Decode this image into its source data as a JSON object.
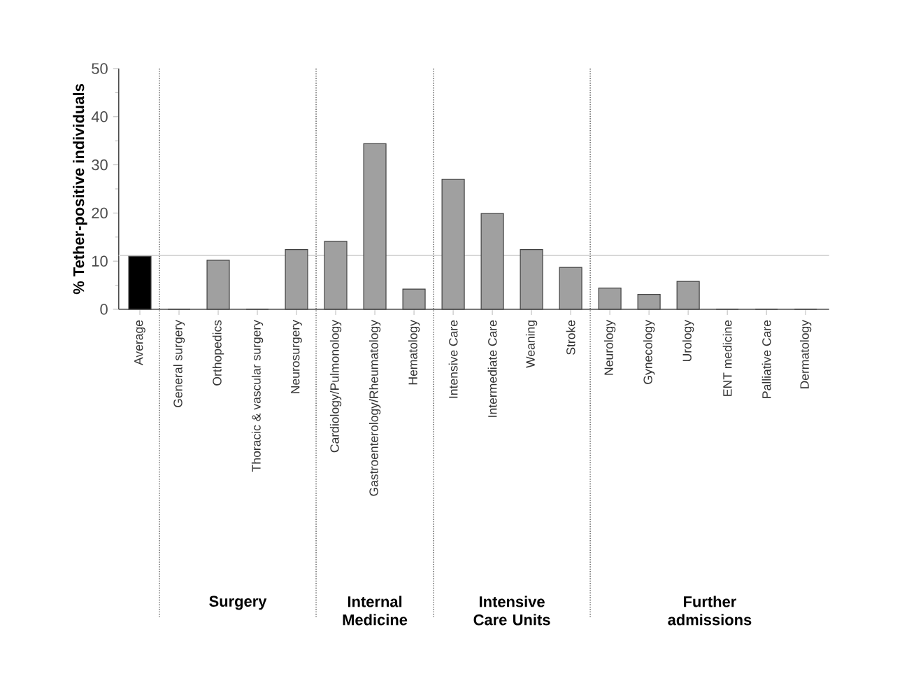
{
  "chart_data": {
    "type": "bar",
    "ylabel": "% Tether-positive individuals",
    "categories": [
      "Average",
      "General surgery",
      "Orthopedics",
      "Thoracic & vascular surgery",
      "Neurosurgery",
      "Cardiology/Pulmonology",
      "Gastroenterology/Rheumatology",
      "Hematology",
      "Intensive Care",
      "Intermediate Care",
      "Weaning",
      "Stroke",
      "Neurology",
      "Gynecology",
      "Urology",
      "ENT medicine",
      "Palliative Care",
      "Dermatology"
    ],
    "values": [
      11.0,
      0,
      10.2,
      0,
      12.4,
      14.1,
      34.4,
      4.2,
      27.0,
      19.9,
      12.4,
      8.7,
      4.4,
      3.1,
      5.8,
      0,
      0,
      0
    ],
    "colors": [
      "#000000",
      "#a0a0a0",
      "#a0a0a0",
      "#a0a0a0",
      "#a0a0a0",
      "#a0a0a0",
      "#a0a0a0",
      "#a0a0a0",
      "#a0a0a0",
      "#a0a0a0",
      "#a0a0a0",
      "#a0a0a0",
      "#a0a0a0",
      "#a0a0a0",
      "#a0a0a0",
      "#a0a0a0",
      "#a0a0a0",
      "#a0a0a0"
    ],
    "ylim": [
      0,
      50
    ],
    "yticks": [
      0,
      10,
      20,
      30,
      40,
      50
    ],
    "ref_lines": [
      {
        "axis": "y",
        "value": 11.2,
        "color": "#d8d8d8",
        "line_style": "solid"
      }
    ],
    "annotations": [
      "Surgery",
      "Internal Medicine",
      "Intensive Care Units",
      "Further admissions"
    ]
  }
}
